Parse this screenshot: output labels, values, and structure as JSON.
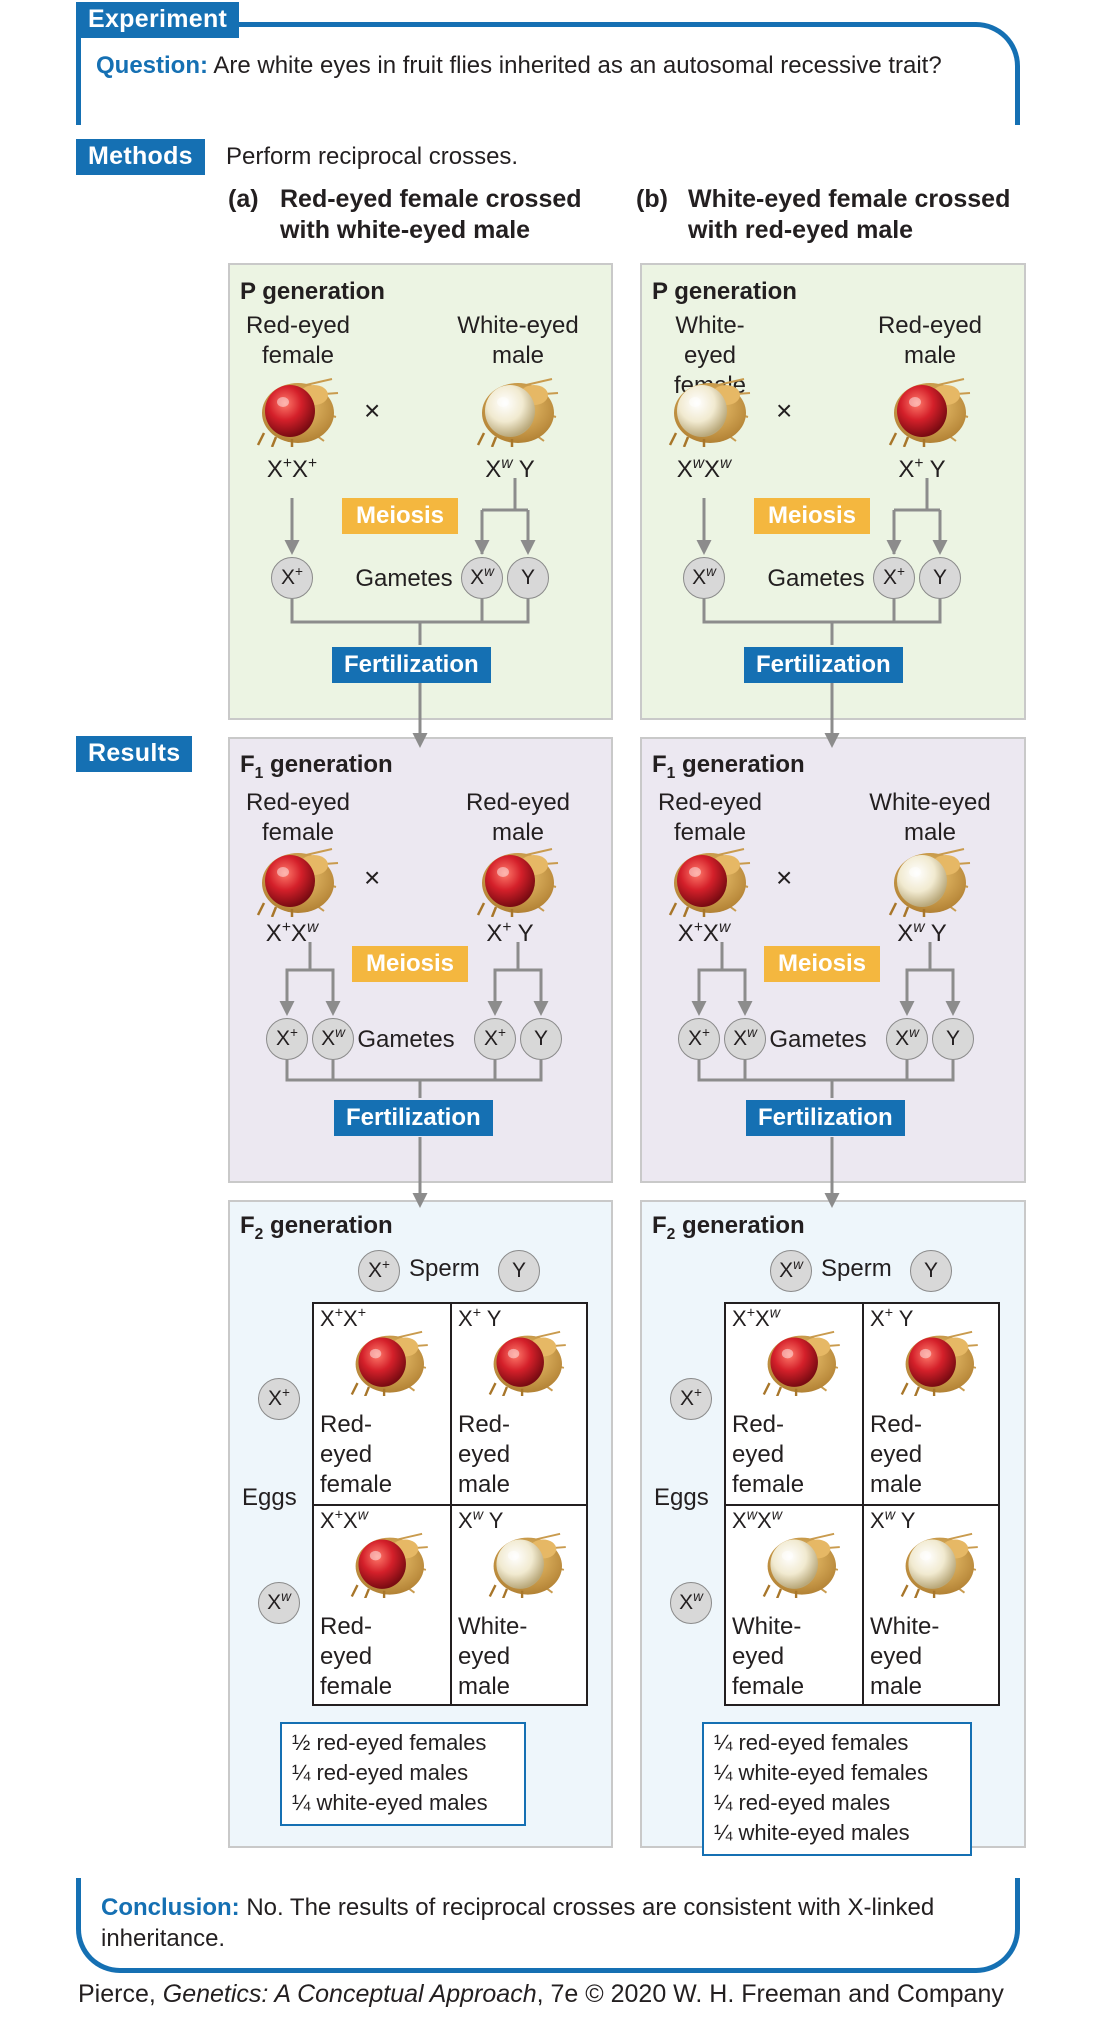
{
  "experiment_label": "Experiment",
  "question_label": "Question:",
  "question_text": "Are white eyes in fruit flies inherited as an autosomal recessive trait?",
  "methods_label": "Methods",
  "methods_text": "Perform reciprocal crosses.",
  "results_label": "Results",
  "cross_a": {
    "letter": "(a)",
    "title_line1": "Red-eyed female crossed",
    "title_line2": "with white-eyed male",
    "p_title": "P generation",
    "p_female_label": [
      "Red-eyed",
      "female"
    ],
    "p_male_label": [
      "White-eyed",
      "male"
    ],
    "p_female_geno": "X+X+",
    "p_male_geno": "XwY",
    "f1_title": "F1 generation",
    "f1_female_label": [
      "Red-eyed",
      "female"
    ],
    "f1_male_label": [
      "Red-eyed",
      "male"
    ],
    "f1_female_geno": "X+Xw",
    "f1_male_geno": "X+Y",
    "f2_title": "F2 generation",
    "sperm": [
      "X+",
      "Y"
    ],
    "eggs": [
      "X+",
      "Xw"
    ],
    "cells": [
      {
        "geno": "X+X+",
        "text": [
          "Red-",
          "eyed",
          "female"
        ]
      },
      {
        "geno": "X+Y",
        "text": [
          "Red-",
          "eyed",
          "male"
        ]
      },
      {
        "geno": "X+Xw",
        "text": [
          "Red-",
          "eyed",
          "female"
        ]
      },
      {
        "geno": "XwY",
        "text": [
          "White-",
          "eyed",
          "male"
        ]
      }
    ],
    "summary": [
      "½ red-eyed females",
      "¼ red-eyed males",
      "¼ white-eyed males"
    ]
  },
  "cross_b": {
    "letter": "(b)",
    "title_line1": "White-eyed female crossed",
    "title_line2": "with red-eyed male",
    "p_title": "P generation",
    "p_female_label": [
      "White-eyed",
      "female"
    ],
    "p_male_label": [
      "Red-eyed",
      "male"
    ],
    "p_female_geno": "XwXw",
    "p_male_geno": "X+Y",
    "f1_title": "F1 generation",
    "f1_female_label": [
      "Red-eyed",
      "female"
    ],
    "f1_male_label": [
      "White-eyed",
      "male"
    ],
    "f1_female_geno": "X+Xw",
    "f1_male_geno": "XwY",
    "f2_title": "F2 generation",
    "sperm": [
      "Xw",
      "Y"
    ],
    "eggs": [
      "X+",
      "Xw"
    ],
    "cells": [
      {
        "geno": "X+Xw",
        "text": [
          "Red-",
          "eyed",
          "female"
        ]
      },
      {
        "geno": "X+Y",
        "text": [
          "Red-",
          "eyed",
          "male"
        ]
      },
      {
        "geno": "XwXw",
        "text": [
          "White-",
          "eyed",
          "female"
        ]
      },
      {
        "geno": "XwY",
        "text": [
          "White-",
          "eyed",
          "male"
        ]
      }
    ],
    "summary": [
      "¼ red-eyed females",
      "¼ white-eyed females",
      "¼ red-eyed males",
      "¼ white-eyed males"
    ]
  },
  "meiosis_label": "Meiosis",
  "fertilization_label": "Fertilization",
  "gametes_label": "Gametes",
  "sperm_label": "Sperm",
  "eggs_label": "Eggs",
  "cross_symbol": "×",
  "conclusion_label": "Conclusion:",
  "conclusion_text": "No. The results of reciprocal crosses are consistent with X-linked inheritance.",
  "credit_author": "Pierce, ",
  "credit_title": "Genetics: A Conceptual Approach",
  "credit_rest": ", 7e © 2020 W. H. Freeman and Company",
  "colors": {
    "blue": "#1570b3",
    "meiosis": "#f4b73f",
    "p_bg": "#ecf4e3",
    "f1_bg": "#ece8f1",
    "f2_bg": "#eef6fb"
  }
}
